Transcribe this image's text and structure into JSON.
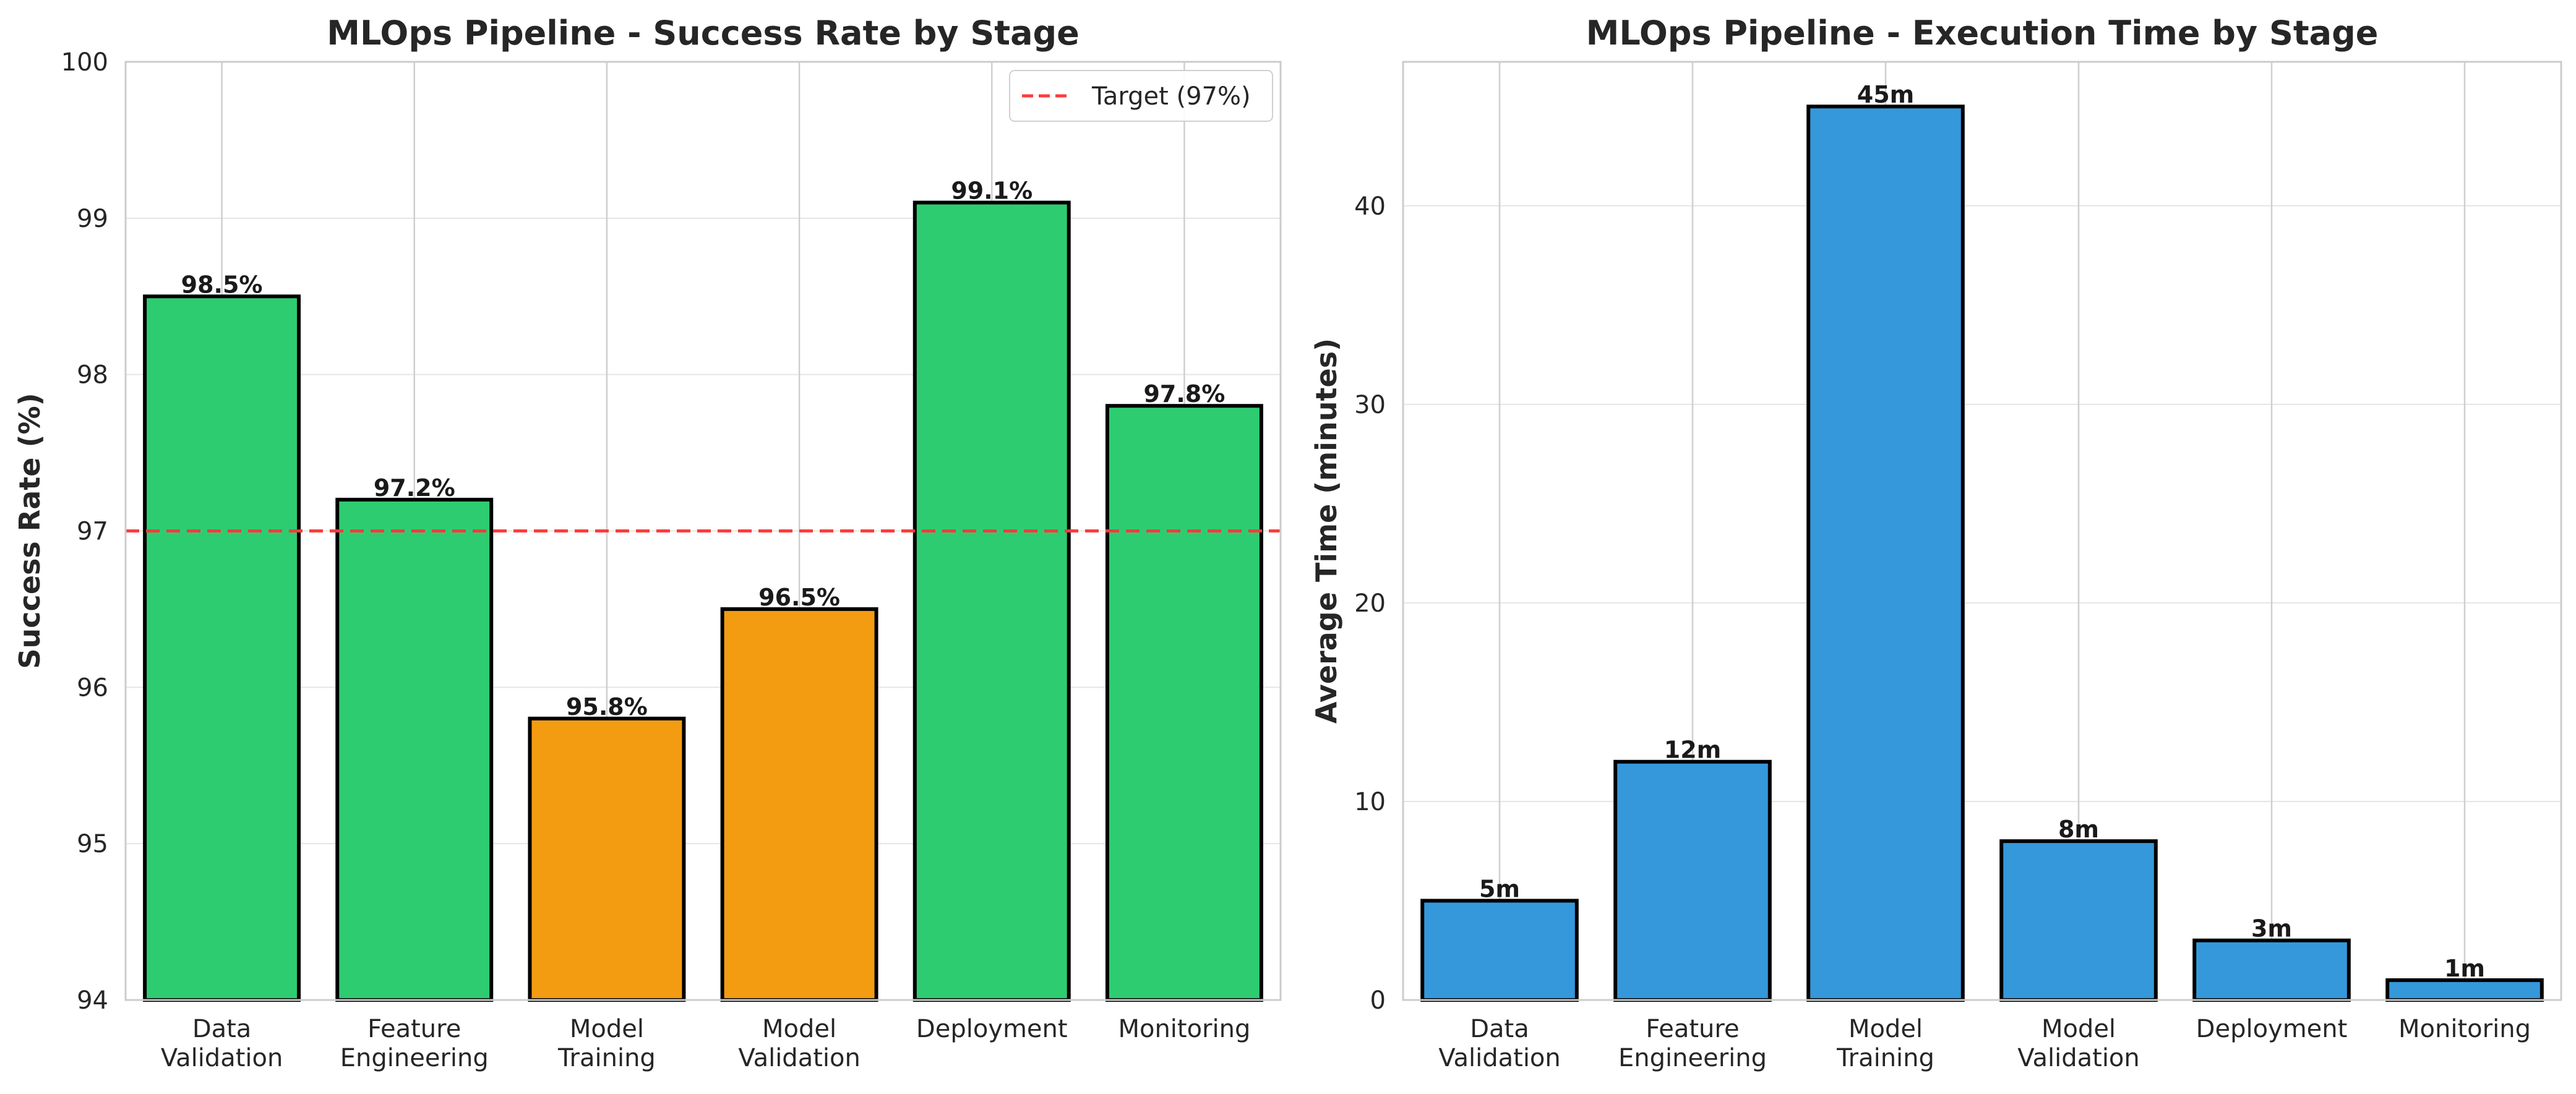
{
  "colors": {
    "above_target": "#2ecc71",
    "below_target": "#f39c12",
    "time_bar": "#3498db",
    "target_line": "#ff3b3b",
    "grid": "#e5e5e5",
    "vgrid": "#cfcfcf",
    "spine": "#cccccc",
    "bar_edge": "#000000"
  },
  "chart_data": [
    {
      "type": "bar",
      "title": "MLOps Pipeline - Success Rate by Stage",
      "xlabel": "",
      "ylabel": "Success Rate (%)",
      "categories": [
        [
          "Data",
          "Validation"
        ],
        [
          "Feature",
          "Engineering"
        ],
        [
          "Model",
          "Training"
        ],
        [
          "Model",
          "Validation"
        ],
        [
          "Deployment"
        ],
        [
          "Monitoring"
        ]
      ],
      "values": [
        98.5,
        97.2,
        95.8,
        96.5,
        99.1,
        97.8
      ],
      "data_labels": [
        "98.5%",
        "97.2%",
        "95.8%",
        "96.5%",
        "99.1%",
        "97.8%"
      ],
      "ylim": [
        94,
        100
      ],
      "yticks": [
        94,
        95,
        96,
        97,
        98,
        99,
        100
      ],
      "target": 97,
      "legend": {
        "position": "top-right",
        "entries": [
          "Target (97%)"
        ]
      },
      "grid": true
    },
    {
      "type": "bar",
      "title": "MLOps Pipeline - Execution Time by Stage",
      "xlabel": "",
      "ylabel": "Average Time (minutes)",
      "categories": [
        [
          "Data",
          "Validation"
        ],
        [
          "Feature",
          "Engineering"
        ],
        [
          "Model",
          "Training"
        ],
        [
          "Model",
          "Validation"
        ],
        [
          "Deployment"
        ],
        [
          "Monitoring"
        ]
      ],
      "values": [
        5,
        12,
        45,
        8,
        3,
        1
      ],
      "data_labels": [
        "5m",
        "12m",
        "45m",
        "8m",
        "3m",
        "1m"
      ],
      "ylim": [
        0,
        47.25
      ],
      "yticks": [
        0,
        10,
        20,
        30,
        40
      ],
      "grid": true
    }
  ]
}
